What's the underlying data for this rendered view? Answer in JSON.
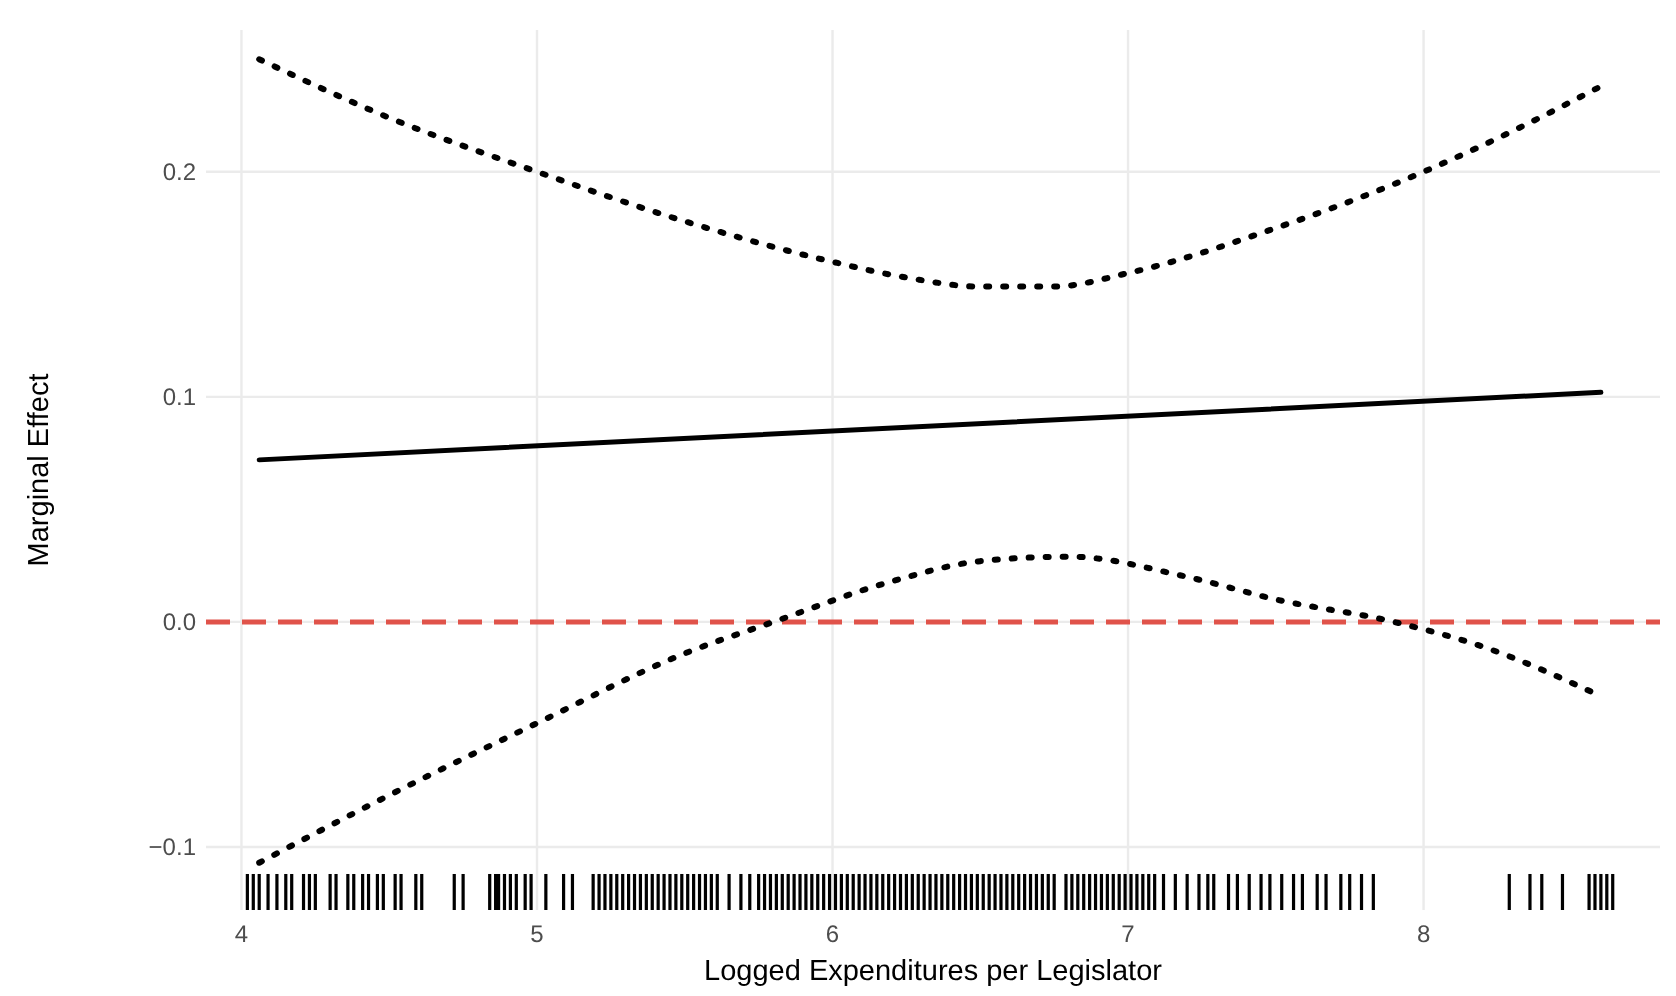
{
  "chart_data": {
    "type": "line",
    "xlabel": "Logged Expenditures per Legislator",
    "ylabel": "Marginal Effect",
    "xlim": [
      3.88,
      8.8
    ],
    "ylim": [
      -0.128,
      0.263
    ],
    "xticks": [
      4,
      5,
      6,
      7,
      8
    ],
    "yticks": [
      {
        "value": -0.1,
        "label": "−0.1"
      },
      {
        "value": 0,
        "label": "0.0"
      },
      {
        "value": 0.1,
        "label": "0.1"
      },
      {
        "value": 0.2,
        "label": "0.2"
      }
    ],
    "grid": true,
    "ref_lines": [
      {
        "axis": "y",
        "value": 0,
        "label": null,
        "color": "#e0534a",
        "line_style": "dashed"
      }
    ],
    "series": [
      {
        "color": "#000000",
        "line_style": "solid",
        "x": [
          4.06,
          8.6
        ],
        "values": [
          0.072,
          0.102
        ]
      },
      {
        "color": "#000000",
        "line_style": "dotted",
        "x": [
          4.06,
          4.5,
          5,
          5.5,
          6,
          6.25,
          6.5,
          6.75,
          7,
          7.5,
          8,
          8.3,
          8.6
        ],
        "values": [
          0.25,
          0.224,
          0.2,
          0.178,
          0.16,
          0.153,
          0.149,
          0.149,
          0.155,
          0.175,
          0.2,
          0.218,
          0.238
        ]
      },
      {
        "color": "#000000",
        "line_style": "dotted",
        "x": [
          4.06,
          4.5,
          5,
          5.5,
          5.8,
          6.2,
          6.5,
          6.8,
          7.2,
          7.5,
          7.9,
          8.2,
          8.6
        ],
        "values": [
          -0.107,
          -0.077,
          -0.045,
          -0.014,
          0.0,
          0.018,
          0.027,
          0.029,
          0.02,
          0.01,
          0.0,
          -0.011,
          -0.033
        ]
      },
      {
        "type": "bar",
        "color": "#000000",
        "base": [
          -0.128,
          -0.128,
          -0.128,
          -0.128,
          -0.128,
          -0.128,
          -0.128,
          -0.128,
          -0.128,
          -0.128,
          -0.128,
          -0.128,
          -0.128,
          -0.128,
          -0.128,
          -0.128,
          -0.128,
          -0.128,
          -0.128,
          -0.128,
          -0.128,
          -0.128,
          -0.128,
          -0.128,
          -0.128,
          -0.128,
          -0.128,
          -0.128,
          -0.128,
          -0.128,
          -0.128,
          -0.128,
          -0.128,
          -0.128,
          -0.128,
          -0.128,
          -0.128,
          -0.128,
          -0.128,
          -0.128,
          -0.128,
          -0.128,
          -0.128,
          -0.128,
          -0.128,
          -0.128,
          -0.128,
          -0.128,
          -0.128,
          -0.128,
          -0.128,
          -0.128,
          -0.128,
          -0.128,
          -0.128,
          -0.128,
          -0.128,
          -0.128,
          -0.128,
          -0.128,
          -0.128,
          -0.128,
          -0.128,
          -0.128,
          -0.128,
          -0.128,
          -0.128,
          -0.128,
          -0.128,
          -0.128,
          -0.128,
          -0.128,
          -0.128,
          -0.128,
          -0.128,
          -0.128,
          -0.128,
          -0.128,
          -0.128,
          -0.128,
          -0.128,
          -0.128,
          -0.128,
          -0.128,
          -0.128,
          -0.128,
          -0.128,
          -0.128,
          -0.128,
          -0.128,
          -0.128,
          -0.128,
          -0.128,
          -0.128,
          -0.128,
          -0.128,
          -0.128,
          -0.128,
          -0.128,
          -0.128,
          -0.128,
          -0.128,
          -0.128,
          -0.128,
          -0.128,
          -0.128,
          -0.128,
          -0.128,
          -0.128,
          -0.128,
          -0.128,
          -0.128,
          -0.128,
          -0.128,
          -0.128,
          -0.128,
          -0.128,
          -0.128,
          -0.128,
          -0.128,
          -0.128,
          -0.128,
          -0.128,
          -0.128,
          -0.128,
          -0.128,
          -0.128,
          -0.128,
          -0.128,
          -0.128,
          -0.128,
          -0.128,
          -0.128,
          -0.128,
          -0.128,
          -0.128,
          -0.128,
          -0.128,
          -0.128,
          -0.128,
          -0.128,
          -0.128,
          -0.128,
          -0.128,
          -0.128,
          -0.128,
          -0.128,
          -0.128,
          -0.128,
          -0.128,
          -0.128,
          -0.128,
          -0.128,
          -0.128,
          -0.128,
          -0.128
        ],
        "x": [
          4.02,
          4.04,
          4.06,
          4.09,
          4.12,
          4.15,
          4.17,
          4.21,
          4.23,
          4.25,
          4.3,
          4.32,
          4.36,
          4.38,
          4.41,
          4.43,
          4.46,
          4.48,
          4.52,
          4.54,
          4.59,
          4.61,
          4.72,
          4.75,
          4.84,
          4.86,
          4.87,
          4.89,
          4.91,
          4.93,
          4.96,
          4.98,
          5.03,
          5.09,
          5.12,
          5.19,
          5.21,
          5.23,
          5.25,
          5.27,
          5.29,
          5.31,
          5.33,
          5.35,
          5.37,
          5.39,
          5.41,
          5.43,
          5.45,
          5.47,
          5.49,
          5.51,
          5.53,
          5.55,
          5.57,
          5.59,
          5.61,
          5.65,
          5.69,
          5.72,
          5.75,
          5.77,
          5.79,
          5.81,
          5.83,
          5.85,
          5.87,
          5.89,
          5.91,
          5.93,
          5.95,
          5.97,
          5.99,
          6.01,
          6.03,
          6.05,
          6.07,
          6.09,
          6.11,
          6.13,
          6.15,
          6.17,
          6.19,
          6.21,
          6.23,
          6.25,
          6.27,
          6.29,
          6.31,
          6.33,
          6.35,
          6.37,
          6.39,
          6.41,
          6.43,
          6.45,
          6.47,
          6.49,
          6.51,
          6.53,
          6.55,
          6.57,
          6.59,
          6.61,
          6.63,
          6.65,
          6.67,
          6.69,
          6.71,
          6.73,
          6.75,
          6.79,
          6.81,
          6.83,
          6.85,
          6.87,
          6.89,
          6.91,
          6.93,
          6.95,
          6.97,
          6.99,
          7.01,
          7.03,
          7.05,
          7.07,
          7.09,
          7.12,
          7.16,
          7.2,
          7.24,
          7.27,
          7.29,
          7.34,
          7.37,
          7.41,
          7.45,
          7.48,
          7.52,
          7.56,
          7.59,
          7.64,
          7.67,
          7.72,
          7.75,
          7.79,
          7.83,
          8.29,
          8.36,
          8.4,
          8.47,
          8.56,
          8.58,
          8.6,
          8.62,
          8.64
        ],
        "values": [
          0.016,
          0.016,
          0.016,
          0.016,
          0.016,
          0.016,
          0.016,
          0.016,
          0.016,
          0.016,
          0.016,
          0.016,
          0.016,
          0.016,
          0.016,
          0.016,
          0.016,
          0.016,
          0.016,
          0.016,
          0.016,
          0.016,
          0.016,
          0.016,
          0.016,
          0.016,
          0.016,
          0.016,
          0.016,
          0.016,
          0.016,
          0.016,
          0.016,
          0.016,
          0.016,
          0.016,
          0.016,
          0.016,
          0.016,
          0.016,
          0.016,
          0.016,
          0.016,
          0.016,
          0.016,
          0.016,
          0.016,
          0.016,
          0.016,
          0.016,
          0.016,
          0.016,
          0.016,
          0.016,
          0.016,
          0.016,
          0.016,
          0.016,
          0.016,
          0.016,
          0.016,
          0.016,
          0.016,
          0.016,
          0.016,
          0.016,
          0.016,
          0.016,
          0.016,
          0.016,
          0.016,
          0.016,
          0.016,
          0.016,
          0.016,
          0.016,
          0.016,
          0.016,
          0.016,
          0.016,
          0.016,
          0.016,
          0.016,
          0.016,
          0.016,
          0.016,
          0.016,
          0.016,
          0.016,
          0.016,
          0.016,
          0.016,
          0.016,
          0.016,
          0.016,
          0.016,
          0.016,
          0.016,
          0.016,
          0.016,
          0.016,
          0.016,
          0.016,
          0.016,
          0.016,
          0.016,
          0.016,
          0.016,
          0.016,
          0.016,
          0.016,
          0.016,
          0.016,
          0.016,
          0.016,
          0.016,
          0.016,
          0.016,
          0.016,
          0.016,
          0.016,
          0.016,
          0.016,
          0.016,
          0.016,
          0.016,
          0.016,
          0.016,
          0.016,
          0.016,
          0.016,
          0.016,
          0.016,
          0.016,
          0.016,
          0.016,
          0.016,
          0.016,
          0.016,
          0.016,
          0.016,
          0.016,
          0.016,
          0.016,
          0.016,
          0.016,
          0.016,
          0.016,
          0.016,
          0.016,
          0.016,
          0.016,
          0.016,
          0.016,
          0.016,
          0.016
        ]
      }
    ]
  }
}
